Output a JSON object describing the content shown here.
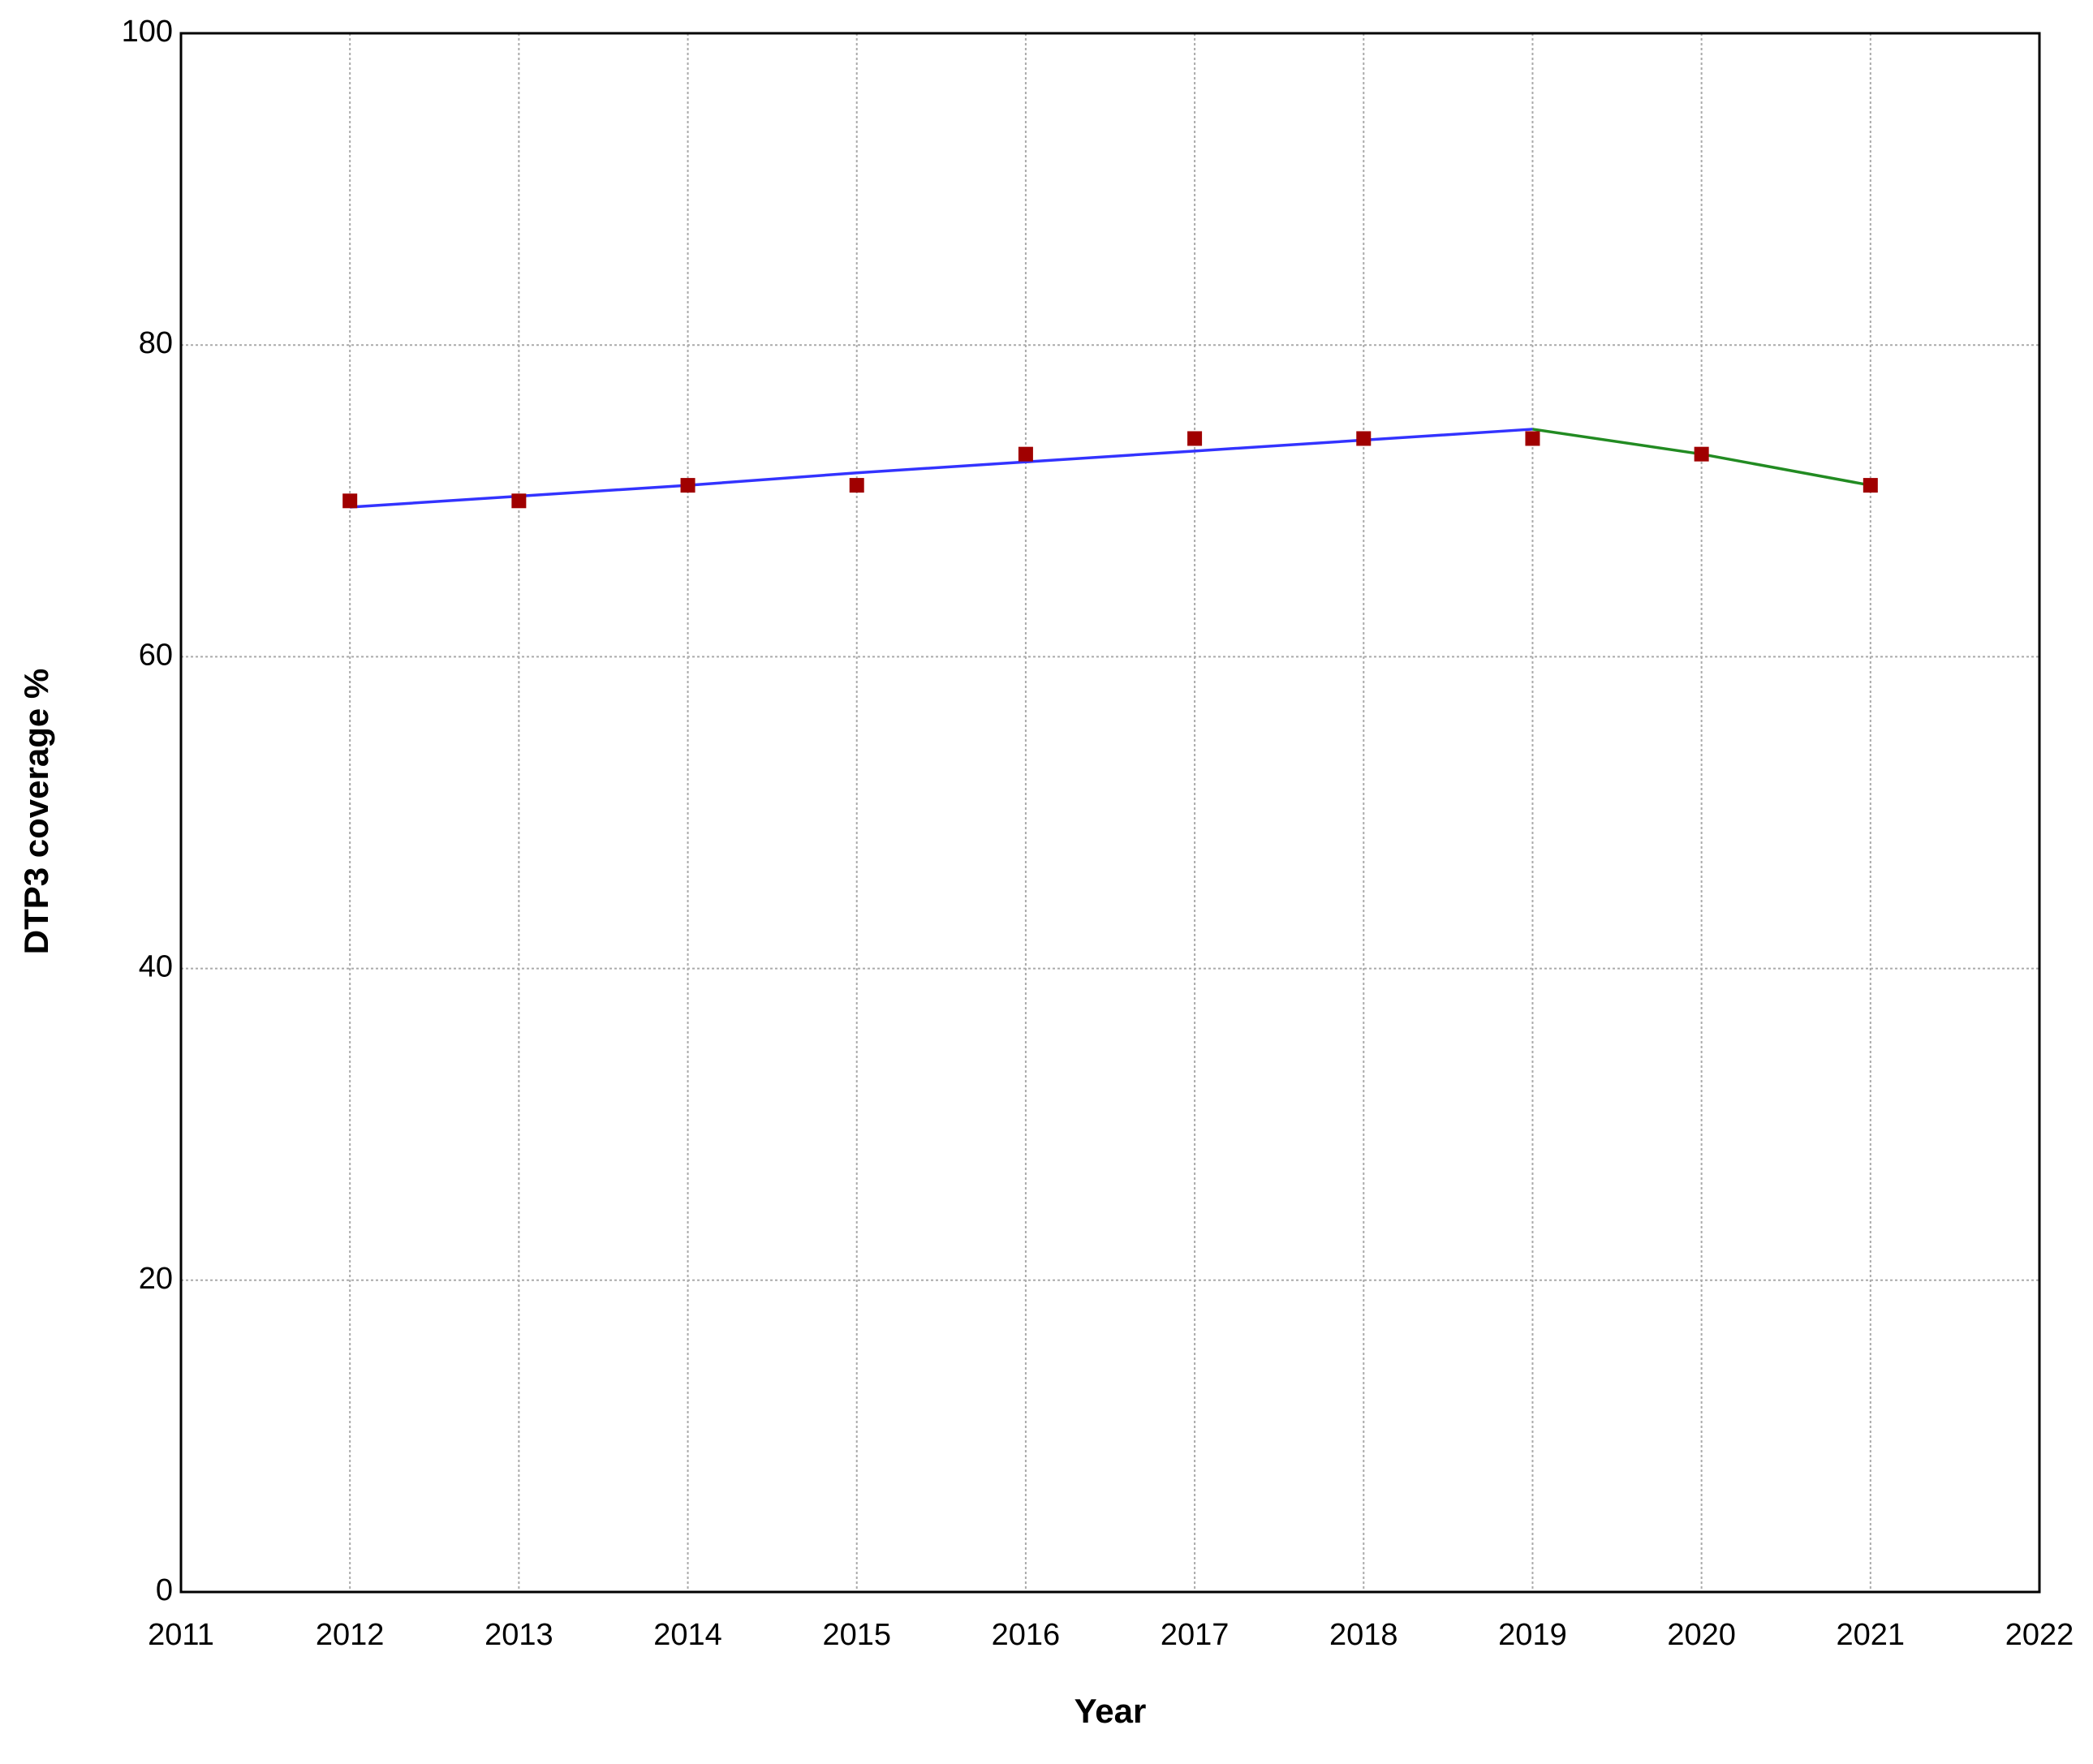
{
  "chart_data": {
    "type": "line",
    "x_label": "Year",
    "y_label": "DTP3 coverage %",
    "x": [
      2012,
      2013,
      2014,
      2015,
      2016,
      2017,
      2018,
      2019,
      2020,
      2021
    ],
    "series": [
      {
        "color": "#3333ff",
        "mode": "lines",
        "values": [
          69.6,
          70.3,
          71.0,
          71.8,
          72.5,
          73.2,
          73.9,
          74.6,
          null,
          null
        ]
      },
      {
        "color": "#228b22",
        "mode": "lines",
        "values": [
          null,
          null,
          null,
          null,
          null,
          null,
          null,
          74.6,
          73,
          71
        ]
      },
      {
        "color": "#a00000",
        "mode": "markers",
        "values": [
          70,
          70,
          71,
          71,
          73,
          74,
          74,
          74,
          73,
          71
        ]
      }
    ],
    "xlim": [
      2011,
      2022
    ],
    "xticks": [
      2011,
      2012,
      2013,
      2014,
      2015,
      2016,
      2017,
      2018,
      2019,
      2020,
      2021,
      2022
    ],
    "ylim": [
      0,
      100
    ],
    "yticks": [
      0,
      20,
      40,
      60,
      80,
      100
    ],
    "grid": true
  }
}
